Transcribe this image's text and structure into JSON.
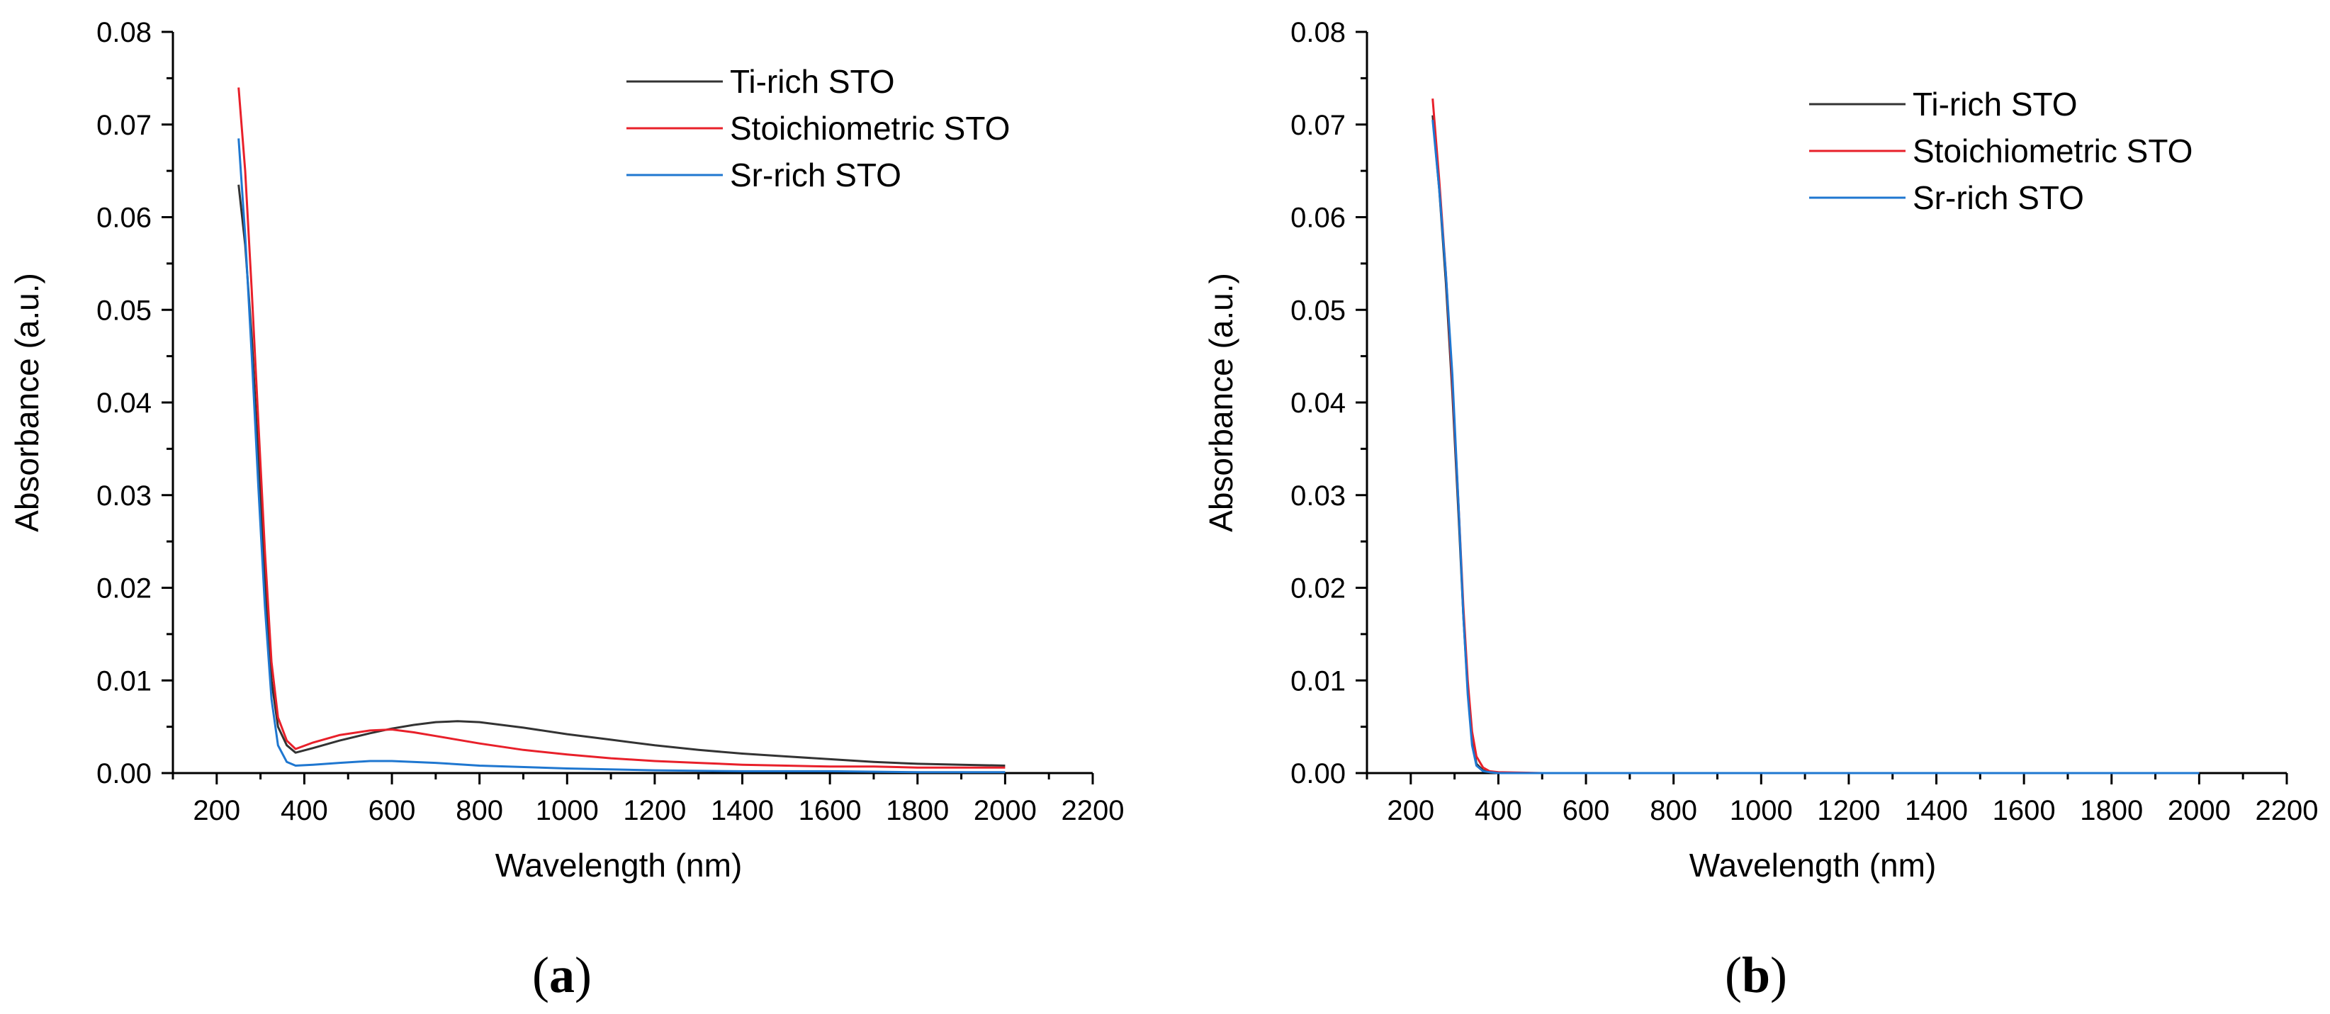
{
  "chart_data": [
    {
      "type": "line",
      "panel_label": "a",
      "title": "",
      "xlabel": "Wavelength (nm)",
      "ylabel": "Absorbance (a.u.)",
      "xlim": [
        100,
        2200
      ],
      "ylim": [
        0,
        0.08
      ],
      "x_ticks": [
        "200",
        "400",
        "600",
        "800",
        "1000",
        "1200",
        "1400",
        "1600",
        "1800",
        "2000",
        "2200"
      ],
      "y_ticks": [
        "0.00",
        "0.01",
        "0.02",
        "0.03",
        "0.04",
        "0.05",
        "0.06",
        "0.07",
        "0.08"
      ],
      "legend_position": "top-right",
      "series": [
        {
          "name": "Ti-rich STO",
          "color": "#333333",
          "x": [
            250,
            265,
            280,
            295,
            310,
            325,
            340,
            360,
            380,
            420,
            480,
            550,
            600,
            650,
            700,
            750,
            800,
            900,
            1000,
            1100,
            1200,
            1300,
            1400,
            1500,
            1600,
            1700,
            1800,
            1900,
            2000
          ],
          "y": [
            0.0635,
            0.057,
            0.047,
            0.034,
            0.021,
            0.01,
            0.005,
            0.003,
            0.0022,
            0.0027,
            0.0035,
            0.0043,
            0.0048,
            0.0052,
            0.0055,
            0.0056,
            0.0055,
            0.0049,
            0.0042,
            0.0036,
            0.003,
            0.0025,
            0.0021,
            0.0018,
            0.0015,
            0.0012,
            0.001,
            0.0009,
            0.0008
          ]
        },
        {
          "name": "Stoichiometric STO",
          "color": "#e8202a",
          "x": [
            250,
            265,
            280,
            295,
            310,
            325,
            340,
            360,
            380,
            420,
            480,
            550,
            600,
            650,
            700,
            800,
            900,
            1000,
            1100,
            1200,
            1300,
            1400,
            1500,
            1600,
            1700,
            1800,
            1900,
            2000
          ],
          "y": [
            0.074,
            0.065,
            0.052,
            0.038,
            0.024,
            0.012,
            0.006,
            0.0035,
            0.0026,
            0.0033,
            0.0041,
            0.0046,
            0.0047,
            0.0044,
            0.004,
            0.0032,
            0.0025,
            0.002,
            0.0016,
            0.0013,
            0.0011,
            0.0009,
            0.0008,
            0.0007,
            0.0007,
            0.0006,
            0.0006,
            0.0006
          ]
        },
        {
          "name": "Sr-rich STO",
          "color": "#1f77d0",
          "x": [
            250,
            265,
            280,
            295,
            310,
            325,
            340,
            360,
            380,
            420,
            480,
            550,
            600,
            700,
            800,
            1000,
            1200,
            1400,
            1600,
            1800,
            2000
          ],
          "y": [
            0.0685,
            0.058,
            0.045,
            0.031,
            0.018,
            0.008,
            0.003,
            0.0012,
            0.0008,
            0.0009,
            0.0011,
            0.0013,
            0.0013,
            0.0011,
            0.0008,
            0.0005,
            0.0003,
            0.0002,
            0.0002,
            0.0001,
            0.0001
          ]
        }
      ]
    },
    {
      "type": "line",
      "panel_label": "b",
      "title": "",
      "xlabel": "Wavelength (nm)",
      "ylabel": "Absorbance (a.u.)",
      "xlim": [
        100,
        2200
      ],
      "ylim": [
        0,
        0.08
      ],
      "x_ticks": [
        "200",
        "400",
        "600",
        "800",
        "1000",
        "1200",
        "1400",
        "1600",
        "1800",
        "2000",
        "2200"
      ],
      "y_ticks": [
        "0.00",
        "0.01",
        "0.02",
        "0.03",
        "0.04",
        "0.05",
        "0.06",
        "0.07",
        "0.08"
      ],
      "legend_position": "top-right",
      "series": [
        {
          "name": "Ti-rich STO",
          "color": "#333333",
          "x": [
            250,
            265,
            280,
            295,
            310,
            320,
            330,
            340,
            350,
            365,
            380,
            400,
            500,
            1000,
            1500,
            2000
          ],
          "y": [
            0.071,
            0.063,
            0.053,
            0.041,
            0.027,
            0.017,
            0.009,
            0.0035,
            0.001,
            0.0003,
            0.0001,
            0,
            0,
            0,
            0,
            0
          ]
        },
        {
          "name": "Stoichiometric STO",
          "color": "#e8202a",
          "x": [
            250,
            265,
            280,
            295,
            310,
            320,
            330,
            340,
            350,
            365,
            380,
            400,
            500,
            1000,
            1500,
            2000
          ],
          "y": [
            0.0728,
            0.064,
            0.054,
            0.042,
            0.028,
            0.018,
            0.01,
            0.0045,
            0.0018,
            0.0006,
            0.0002,
            0.0001,
            0,
            0,
            0,
            0
          ]
        },
        {
          "name": "Sr-rich STO",
          "color": "#1f77d0",
          "x": [
            250,
            265,
            280,
            295,
            310,
            320,
            330,
            340,
            350,
            365,
            380,
            400,
            500,
            1000,
            1500,
            2000
          ],
          "y": [
            0.0705,
            0.063,
            0.054,
            0.043,
            0.028,
            0.017,
            0.0085,
            0.003,
            0.0008,
            0.0002,
            0.0001,
            0,
            0,
            0,
            0,
            0
          ]
        }
      ]
    }
  ]
}
